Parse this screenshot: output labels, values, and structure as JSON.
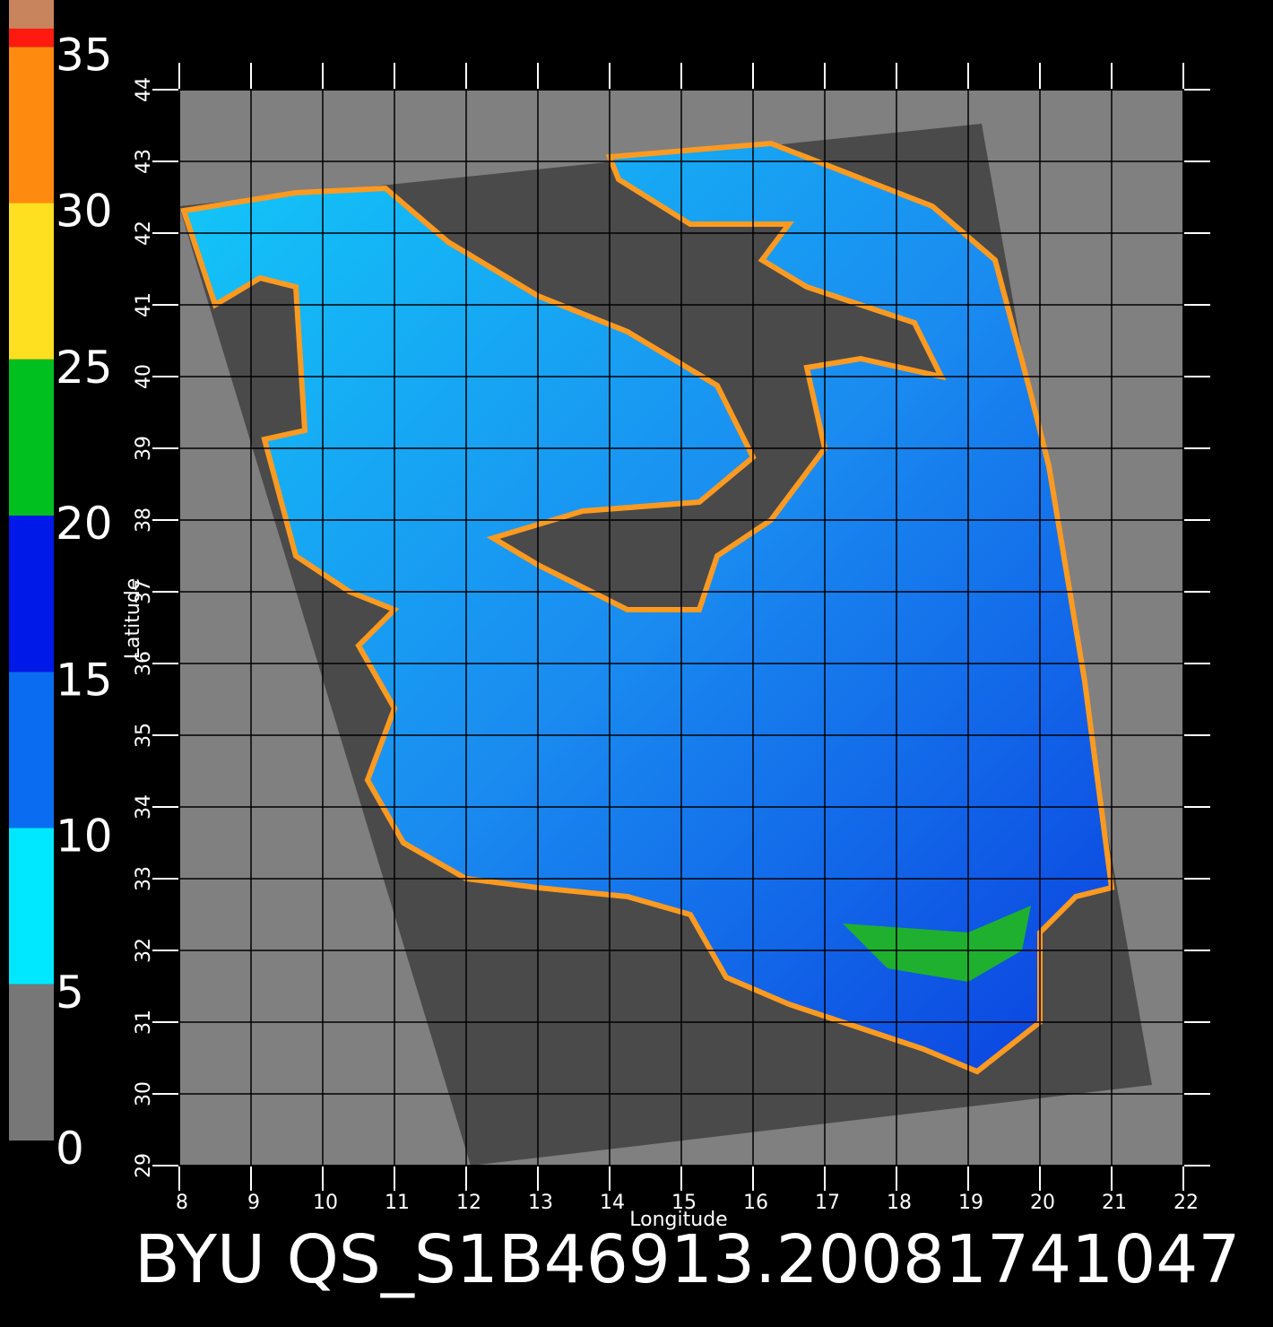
{
  "map": {
    "title": "BYU QS_S1B46913.20081741047",
    "x_label": "Longitude",
    "y_label": "Latitude",
    "xlim": [
      8,
      22
    ],
    "ylim": [
      29,
      44
    ],
    "xticks": [
      8,
      9,
      10,
      11,
      12,
      13,
      14,
      15,
      16,
      17,
      18,
      19,
      20,
      21,
      22
    ],
    "yticks": [
      29,
      30,
      31,
      32,
      33,
      34,
      35,
      36,
      37,
      38,
      39,
      40,
      41,
      42,
      43,
      44
    ]
  },
  "colorbar": {
    "lim": [
      0,
      36.5
    ],
    "ticks": [
      0,
      5,
      10,
      15,
      20,
      25,
      30,
      35
    ],
    "colors": [
      "#777777",
      "#00e8ff",
      "#0a6cf0",
      "#0018e8",
      "#00c020",
      "#ffe020",
      "#ff8a10",
      "#ff1a10"
    ],
    "top_color": "#c8845c"
  }
}
